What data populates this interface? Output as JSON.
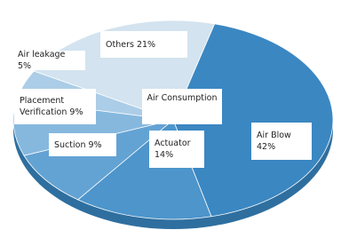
{
  "chart_data": {
    "type": "pie",
    "center_label": "Air Consumption",
    "categories": [
      "Air Blow",
      "Actuator",
      "Suction",
      "Placement Verification",
      "Air leakage",
      "Others"
    ],
    "values": [
      42,
      14,
      9,
      9,
      5,
      21
    ],
    "value_labels": [
      "42%",
      "14%",
      "9%",
      "9%",
      "5%",
      "21%"
    ],
    "colors": [
      "#3b87c2",
      "#4d95cb",
      "#63a3d3",
      "#86b8de",
      "#accde7",
      "#d3e3ef"
    ]
  }
}
